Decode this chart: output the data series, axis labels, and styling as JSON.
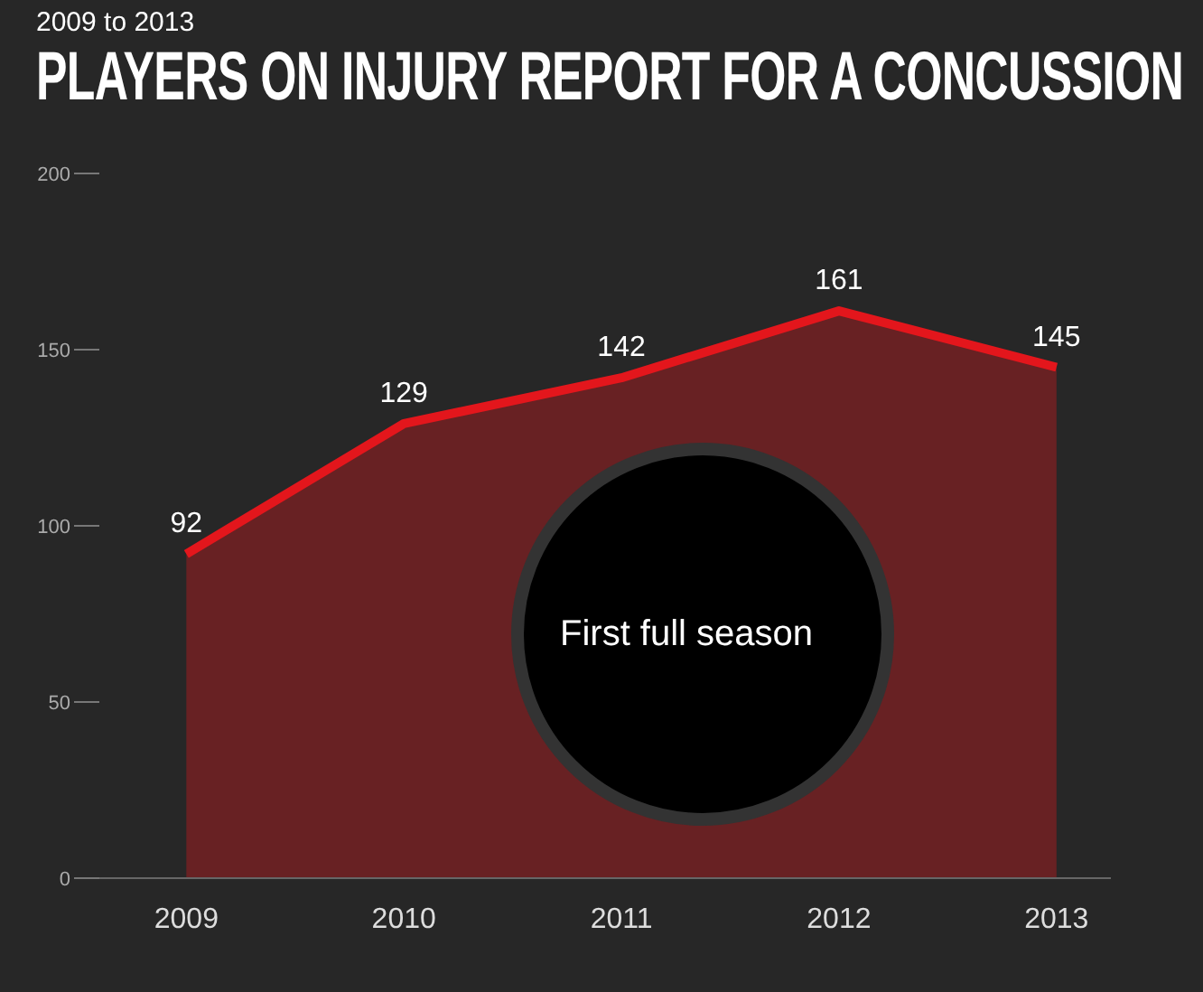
{
  "chart_data": {
    "type": "area",
    "subtitle": "2009 to 2013",
    "title": "PLAYERS ON INJURY REPORT FOR A CONCUSSION",
    "categories": [
      "2009",
      "2010",
      "2011",
      "2012",
      "2013"
    ],
    "series": [
      {
        "color": "#e3161c",
        "values": [
          92,
          129,
          142,
          161,
          145
        ]
      }
    ],
    "ylim": [
      0,
      200
    ],
    "yticks": [
      0,
      50,
      100,
      150,
      200
    ],
    "grid": false,
    "data_labels": true,
    "annotations": [
      "First full season"
    ]
  }
}
